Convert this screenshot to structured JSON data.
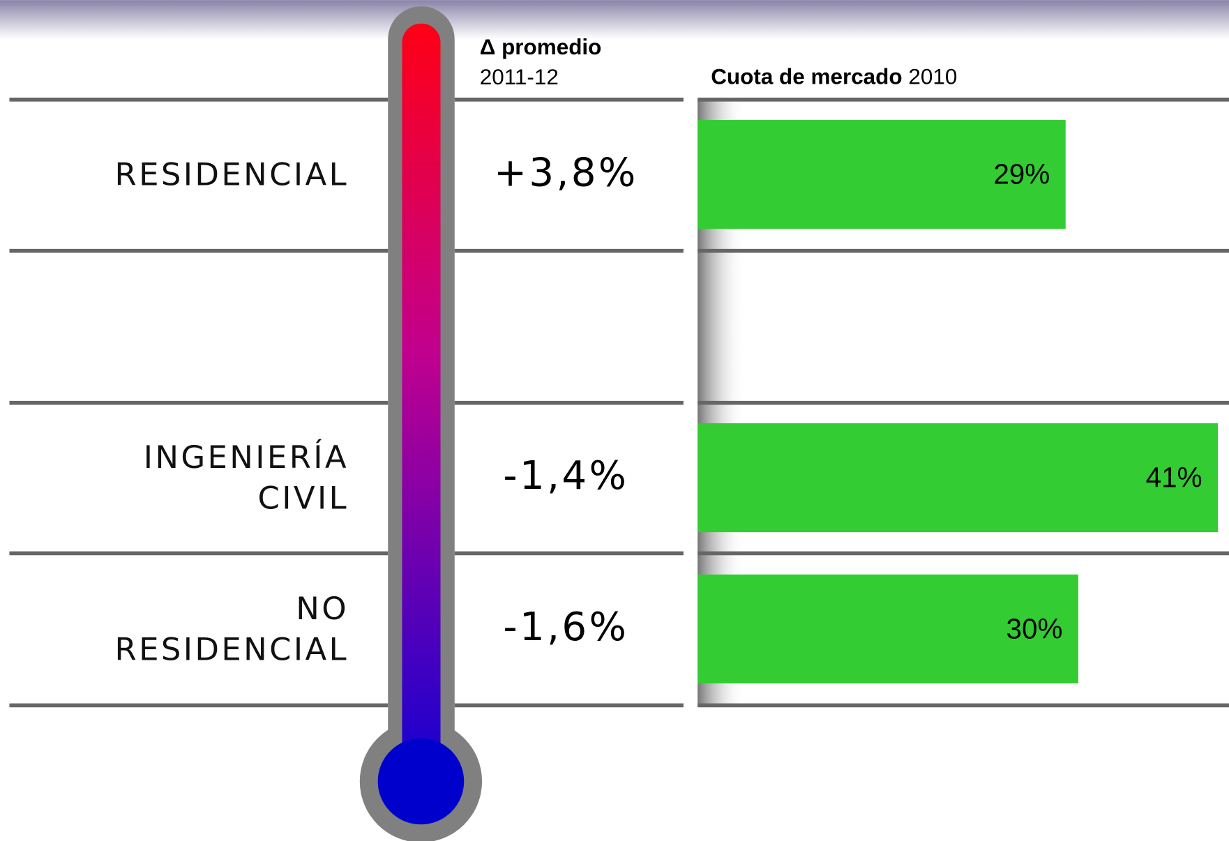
{
  "chart_data": {
    "type": "bar",
    "categories": [
      "RESIDENCIAL",
      null,
      "INGENIERÍA CIVIL",
      "NO RESIDENCIAL"
    ],
    "change": {
      "title": "Δ promedio",
      "subtitle": "2011-12",
      "values": [
        3.8,
        null,
        -1.4,
        -1.6
      ],
      "value_labels": [
        "+3,8%",
        null,
        "-1,4%",
        "-1,6%"
      ]
    },
    "series": [
      {
        "name": "Cuota de mercado",
        "subtitle": "2010",
        "color": "#33cc33",
        "values": [
          29,
          null,
          41,
          30
        ],
        "value_labels": [
          "29%",
          null,
          "41%",
          "30%"
        ]
      }
    ],
    "xlim": [
      0,
      42
    ]
  }
}
